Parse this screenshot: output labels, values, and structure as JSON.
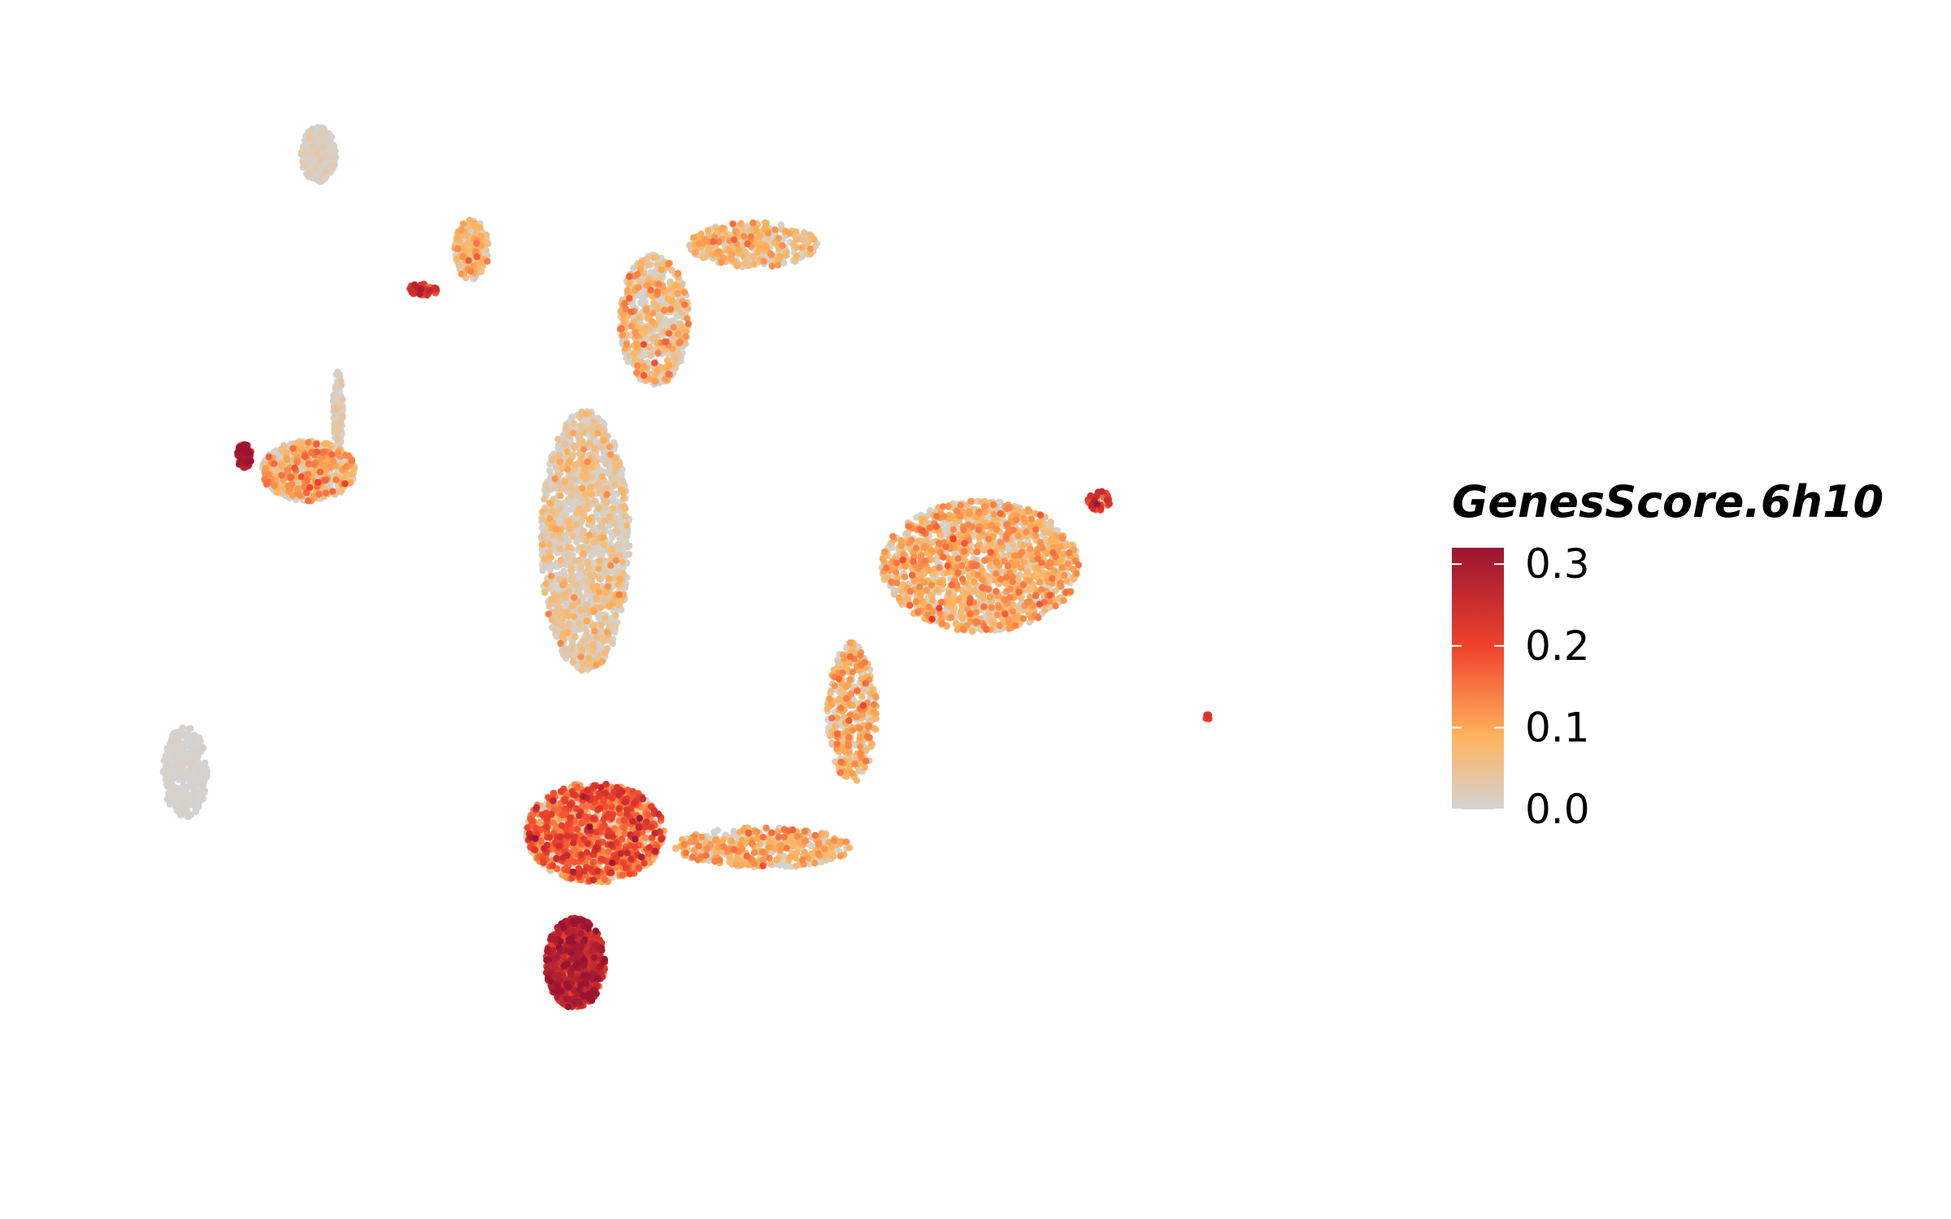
{
  "chart_data": {
    "type": "scatter",
    "title": "",
    "xlabel": "",
    "ylabel": "",
    "grid": false,
    "axes_visible": false,
    "legend_placement": "right",
    "colorbar": {
      "title": "GenesScore.6h10",
      "ticks": [
        "0.0",
        "0.1",
        "0.2",
        "0.3"
      ],
      "tick_values": [
        0.0,
        0.1,
        0.2,
        0.3
      ],
      "range": [
        0.0,
        0.32
      ],
      "colors": [
        "#d3d3d3",
        "#ffb35c",
        "#f0432c",
        "#9a1432"
      ]
    },
    "x_range": [
      -12,
      14
    ],
    "y_range": [
      -10,
      12
    ],
    "clusters": [
      {
        "name": "top-left-blob",
        "cx": -7.2,
        "cy": 9.9,
        "rx": 0.35,
        "ry": 0.55,
        "n": 260,
        "score": 0.01,
        "spread": 0.01
      },
      {
        "name": "upper-small-cluster",
        "cx": -4.1,
        "cy": 8.0,
        "rx": 0.35,
        "ry": 0.6,
        "n": 240,
        "score": 0.06,
        "spread": 0.04
      },
      {
        "name": "upper-small-tail",
        "cx": -5.1,
        "cy": 7.2,
        "rx": 0.35,
        "ry": 0.12,
        "n": 50,
        "score": 0.2,
        "spread": 0.04
      },
      {
        "name": "left-fan-cluster",
        "cx": -7.4,
        "cy": 3.6,
        "rx": 0.95,
        "ry": 0.6,
        "n": 560,
        "score": 0.07,
        "spread": 0.05
      },
      {
        "name": "left-fan-tip",
        "cx": -8.7,
        "cy": 3.9,
        "rx": 0.15,
        "ry": 0.25,
        "n": 90,
        "score": 0.24,
        "spread": 0.05
      },
      {
        "name": "left-fan-stem",
        "cx": -6.8,
        "cy": 4.8,
        "rx": 0.1,
        "ry": 0.8,
        "n": 100,
        "score": 0.01,
        "spread": 0.02
      },
      {
        "name": "bottom-left-drop",
        "cx": -9.9,
        "cy": -2.4,
        "rx": 0.45,
        "ry": 0.9,
        "n": 360,
        "score": 0.0,
        "spread": 0.0
      },
      {
        "name": "central-body-upper",
        "cx": -1.8,
        "cy": 2.2,
        "rx": 0.9,
        "ry": 2.6,
        "n": 1600,
        "score": 0.02,
        "spread": 0.04
      },
      {
        "name": "central-arm-top",
        "cx": -0.4,
        "cy": 6.6,
        "rx": 0.7,
        "ry": 1.3,
        "n": 650,
        "score": 0.05,
        "spread": 0.05
      },
      {
        "name": "central-arm-right",
        "cx": 1.6,
        "cy": 8.1,
        "rx": 1.3,
        "ry": 0.45,
        "n": 380,
        "score": 0.06,
        "spread": 0.04
      },
      {
        "name": "central-body-lower",
        "cx": -1.6,
        "cy": -3.6,
        "rx": 1.4,
        "ry": 1.0,
        "n": 1500,
        "score": 0.14,
        "spread": 0.06
      },
      {
        "name": "central-tip-hot",
        "cx": -2.0,
        "cy": -6.2,
        "rx": 0.6,
        "ry": 0.9,
        "n": 700,
        "score": 0.24,
        "spread": 0.05
      },
      {
        "name": "bridge-lower",
        "cx": 1.8,
        "cy": -3.9,
        "rx": 1.8,
        "ry": 0.4,
        "n": 420,
        "score": 0.08,
        "spread": 0.04
      },
      {
        "name": "right-large-cluster",
        "cx": 6.2,
        "cy": 1.7,
        "rx": 2.0,
        "ry": 1.3,
        "n": 1700,
        "score": 0.08,
        "spread": 0.04
      },
      {
        "name": "right-cluster-lower-arm",
        "cx": 3.6,
        "cy": -1.2,
        "rx": 0.5,
        "ry": 1.4,
        "n": 420,
        "score": 0.08,
        "spread": 0.04
      },
      {
        "name": "right-cluster-tip",
        "cx": 8.6,
        "cy": 3.0,
        "rx": 0.25,
        "ry": 0.2,
        "n": 40,
        "score": 0.2,
        "spread": 0.05
      },
      {
        "name": "far-right-speck",
        "cx": 10.8,
        "cy": -1.3,
        "rx": 0.05,
        "ry": 0.05,
        "n": 8,
        "score": 0.2,
        "spread": 0.02
      }
    ]
  }
}
